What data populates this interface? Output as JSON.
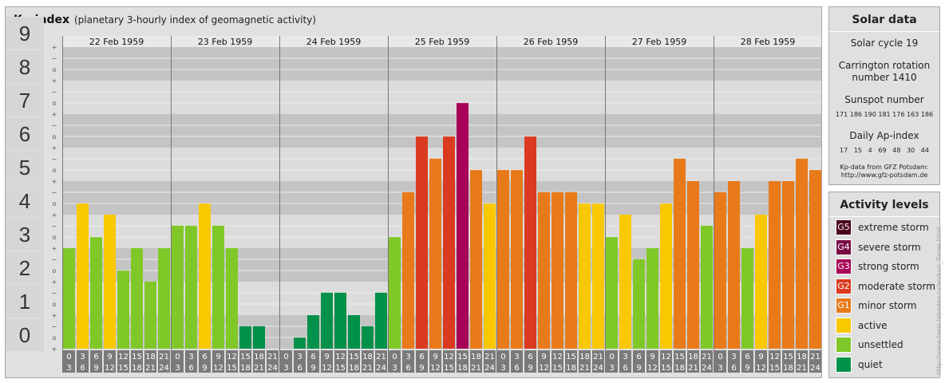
{
  "header": {
    "title": "Kp-index",
    "subtitle": "(planetary 3-hourly index of geomagnetic activity)"
  },
  "chart_data": {
    "type": "bar",
    "ylim": [
      0,
      9
    ],
    "y_ticks": [
      "0",
      "1",
      "2",
      "3",
      "4",
      "5",
      "6",
      "7",
      "8",
      "9"
    ],
    "minor_tick_marks": [
      "−",
      "+",
      "o"
    ],
    "days": [
      {
        "date": "22 Feb 1959",
        "values": [
          3.0,
          4.33,
          3.33,
          4.0,
          2.33,
          3.0,
          2.0,
          3.0
        ]
      },
      {
        "date": "23 Feb 1959",
        "values": [
          3.67,
          3.67,
          4.33,
          3.67,
          3.0,
          0.67,
          0.67,
          0.0
        ]
      },
      {
        "date": "24 Feb 1959",
        "values": [
          0.0,
          0.33,
          1.0,
          1.67,
          1.67,
          1.0,
          0.67,
          1.67
        ]
      },
      {
        "date": "25 Feb 1959",
        "values": [
          3.33,
          4.67,
          6.33,
          5.67,
          6.33,
          7.33,
          5.33,
          4.33
        ]
      },
      {
        "date": "26 Feb 1959",
        "values": [
          5.33,
          5.33,
          6.33,
          4.67,
          4.67,
          4.67,
          4.33,
          4.33
        ]
      },
      {
        "date": "27 Feb 1959",
        "values": [
          3.33,
          4.0,
          2.67,
          3.0,
          4.33,
          5.67,
          5.0,
          3.67
        ]
      },
      {
        "date": "28 Feb 1959",
        "values": [
          4.67,
          5.0,
          3.0,
          4.0,
          5.0,
          5.0,
          5.67,
          5.33
        ]
      }
    ],
    "time_slots": [
      {
        "start": "0",
        "end": "3"
      },
      {
        "start": "3",
        "end": "6"
      },
      {
        "start": "6",
        "end": "9"
      },
      {
        "start": "9",
        "end": "12"
      },
      {
        "start": "12",
        "end": "15"
      },
      {
        "start": "15",
        "end": "18"
      },
      {
        "start": "18",
        "end": "21"
      },
      {
        "start": "21",
        "end": "24"
      }
    ],
    "level_colors": {
      "quiet": "#00914a",
      "unsettled": "#80c828",
      "active": "#fac800",
      "minor": "#e87a1a",
      "moderate": "#da3a20",
      "strong": "#a80058"
    }
  },
  "solar_data": {
    "title": "Solar data",
    "solar_cycle": "Solar cycle 19",
    "carrington_line1": "Carrington rotation",
    "carrington_line2": "number 1410",
    "sunspot_label": "Sunspot number",
    "sunspot_values": "171 186 190 181 176 163 186",
    "ap_label": "Daily Ap-index",
    "ap_values": "17   15   4   69   48   30   44",
    "source_line1": "Kp-data from GFZ Potsdam:",
    "source_line2": "http://www.gfz-potsdam.de"
  },
  "activity_levels": {
    "title": "Activity levels",
    "items": [
      {
        "code": "G5",
        "label": "extreme storm",
        "color": "#4a0018"
      },
      {
        "code": "G4",
        "label": "severe storm",
        "color": "#7a0a46"
      },
      {
        "code": "G3",
        "label": "strong storm",
        "color": "#a80058"
      },
      {
        "code": "G2",
        "label": "moderate storm",
        "color": "#da3a20"
      },
      {
        "code": "G1",
        "label": "minor storm",
        "color": "#e87a1a"
      },
      {
        "code": "",
        "label": "active",
        "color": "#fac800"
      },
      {
        "code": "",
        "label": "unsettled",
        "color": "#80c828"
      },
      {
        "code": "",
        "label": "quiet",
        "color": "#00914a"
      }
    ]
  },
  "watermark": "http://www.tesis.lebedev.ru/en/sun_flares.html"
}
